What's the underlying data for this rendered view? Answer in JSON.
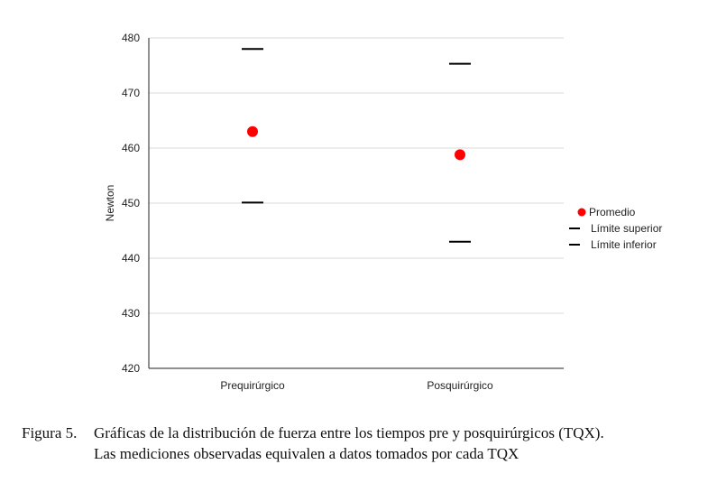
{
  "chart_data": {
    "type": "scatter",
    "ylabel": "Newton",
    "ylim": [
      420,
      480
    ],
    "yticks": [
      420,
      430,
      440,
      450,
      460,
      470,
      480
    ],
    "categories": [
      "Prequirúrgico",
      "Posquirúrgico"
    ],
    "series": [
      {
        "name": "Promedio",
        "marker": "dot",
        "color": "#ff0000",
        "values": [
          463,
          458.8
        ]
      },
      {
        "name": "Límite superior",
        "marker": "dash",
        "color": "#000000",
        "values": [
          478,
          475.3
        ]
      },
      {
        "name": "Límite inferior",
        "marker": "dash",
        "color": "#000000",
        "values": [
          450.1,
          443
        ]
      }
    ],
    "grid": true,
    "legend_position": "right"
  },
  "caption": {
    "label": "Figura 5.",
    "line1": "Gráficas de la distribución de fuerza entre los tiempos pre y posquirúrgicos (TQX).",
    "line2": "Las mediciones observadas equivalen a datos tomados por cada TQX"
  }
}
